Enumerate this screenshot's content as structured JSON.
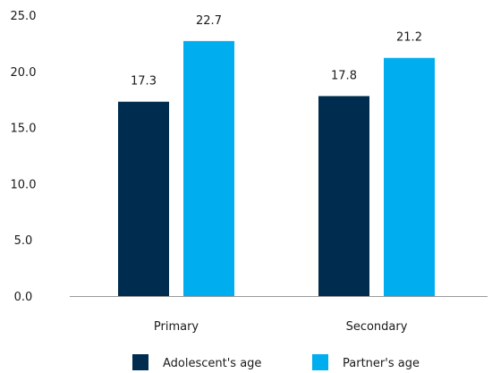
{
  "chart_data": {
    "type": "bar",
    "categories": [
      "Primary",
      "Secondary"
    ],
    "series": [
      {
        "name": "Adolescent's age",
        "color": "#002d4f",
        "values": [
          17.3,
          17.8
        ]
      },
      {
        "name": "Partner's age",
        "color": "#00aeef",
        "values": [
          22.7,
          21.2
        ]
      }
    ],
    "ylim": [
      0,
      25
    ],
    "yticks": [
      "0.0",
      "5.0",
      "10.0",
      "15.0",
      "20.0",
      "25.0"
    ],
    "grid": false,
    "legend_position": "bottom"
  }
}
